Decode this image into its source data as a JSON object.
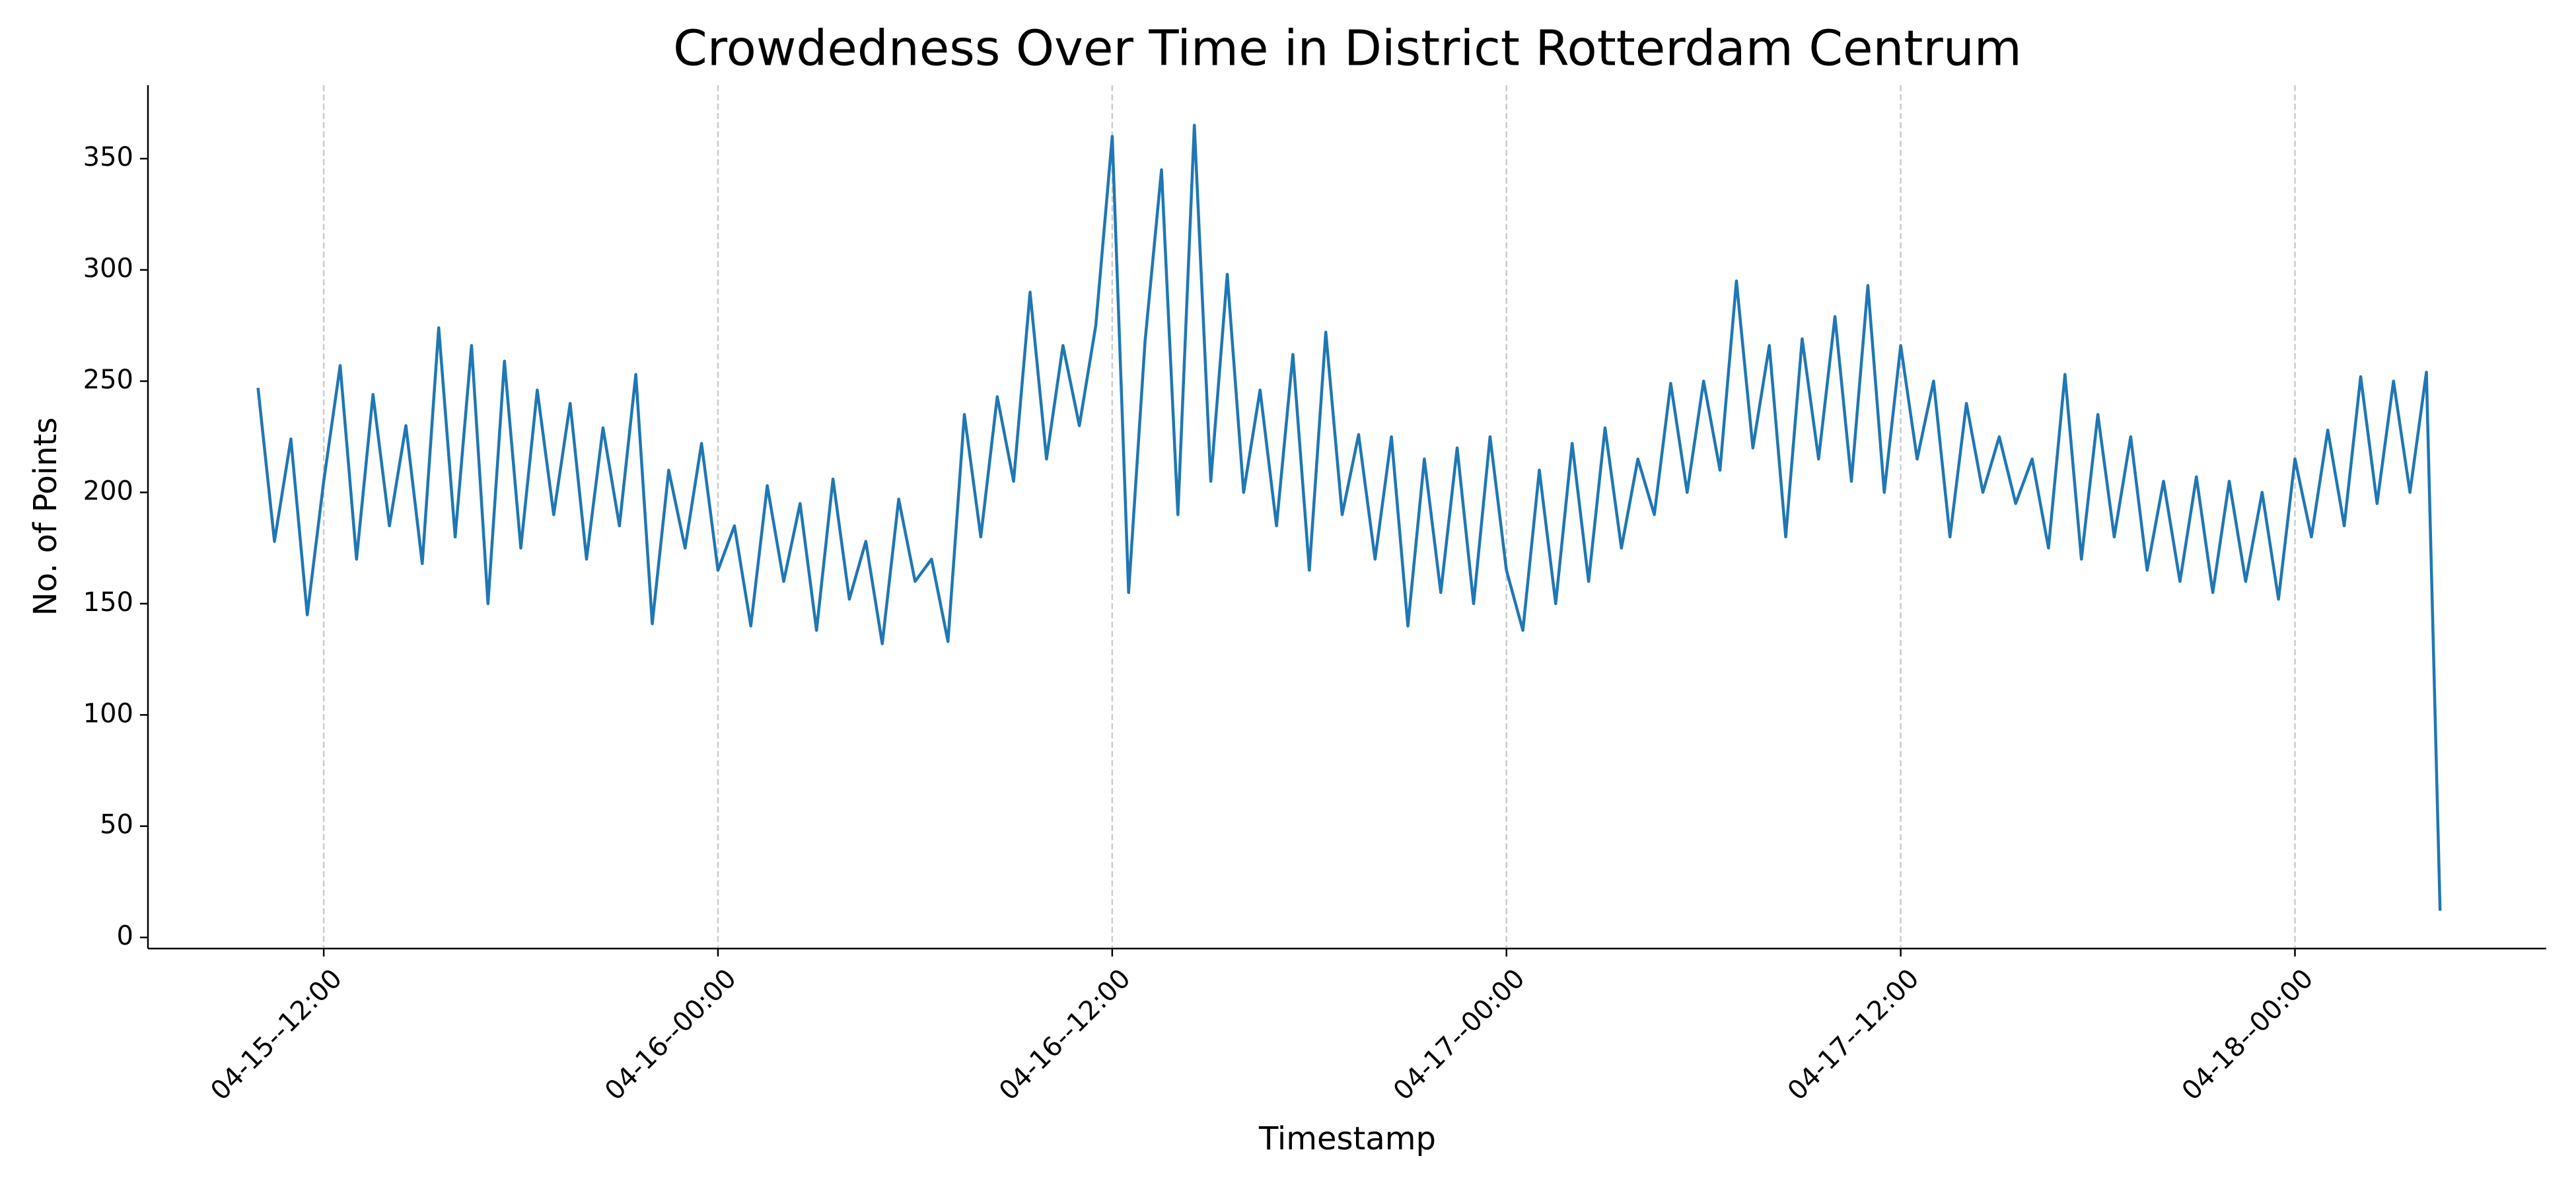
{
  "chart_data": {
    "type": "line",
    "title": "Crowdedness Over Time in District Rotterdam Centrum",
    "x_label": "Timestamp",
    "y_label": "No. of Points",
    "color": "#1f77b4",
    "grid": "x",
    "xlim": [
      "04-15--06:39",
      "04-18--07:39"
    ],
    "xticks": [
      "04-15--12:00",
      "04-16--00:00",
      "04-16--12:00",
      "04-17--00:00",
      "04-17--12:00",
      "04-18--00:00"
    ],
    "ylim": [
      -5,
      383
    ],
    "yticks": [
      0,
      50,
      100,
      150,
      200,
      250,
      300,
      350
    ],
    "x": [
      "04-15--10:00",
      "04-15--10:30",
      "04-15--11:00",
      "04-15--11:30",
      "04-15--12:00",
      "04-15--12:30",
      "04-15--13:00",
      "04-15--13:30",
      "04-15--14:00",
      "04-15--14:30",
      "04-15--15:00",
      "04-15--15:30",
      "04-15--16:00",
      "04-15--16:30",
      "04-15--17:00",
      "04-15--17:30",
      "04-15--18:00",
      "04-15--18:30",
      "04-15--19:00",
      "04-15--19:30",
      "04-15--20:00",
      "04-15--20:30",
      "04-15--21:00",
      "04-15--21:30",
      "04-15--22:00",
      "04-15--22:30",
      "04-15--23:00",
      "04-15--23:30",
      "04-16--00:00",
      "04-16--00:30",
      "04-16--01:00",
      "04-16--01:30",
      "04-16--02:00",
      "04-16--02:30",
      "04-16--03:00",
      "04-16--03:30",
      "04-16--04:00",
      "04-16--04:30",
      "04-16--05:00",
      "04-16--05:30",
      "04-16--06:00",
      "04-16--06:30",
      "04-16--07:00",
      "04-16--07:30",
      "04-16--08:00",
      "04-16--08:30",
      "04-16--09:00",
      "04-16--09:30",
      "04-16--10:00",
      "04-16--10:30",
      "04-16--11:00",
      "04-16--11:30",
      "04-16--12:00",
      "04-16--12:30",
      "04-16--13:00",
      "04-16--13:30",
      "04-16--14:00",
      "04-16--14:30",
      "04-16--15:00",
      "04-16--15:30",
      "04-16--16:00",
      "04-16--16:30",
      "04-16--17:00",
      "04-16--17:30",
      "04-16--18:00",
      "04-16--18:30",
      "04-16--19:00",
      "04-16--19:30",
      "04-16--20:00",
      "04-16--20:30",
      "04-16--21:00",
      "04-16--21:30",
      "04-16--22:00",
      "04-16--22:30",
      "04-16--23:00",
      "04-16--23:30",
      "04-17--00:00",
      "04-17--00:30",
      "04-17--01:00",
      "04-17--01:30",
      "04-17--02:00",
      "04-17--02:30",
      "04-17--03:00",
      "04-17--03:30",
      "04-17--04:00",
      "04-17--04:30",
      "04-17--05:00",
      "04-17--05:30",
      "04-17--06:00",
      "04-17--06:30",
      "04-17--07:00",
      "04-17--07:30",
      "04-17--08:00",
      "04-17--08:30",
      "04-17--09:00",
      "04-17--09:30",
      "04-17--10:00",
      "04-17--10:30",
      "04-17--11:00",
      "04-17--11:30",
      "04-17--12:00",
      "04-17--12:30",
      "04-17--13:00",
      "04-17--13:30",
      "04-17--14:00",
      "04-17--14:30",
      "04-17--15:00",
      "04-17--15:30",
      "04-17--16:00",
      "04-17--16:30",
      "04-17--17:00",
      "04-17--17:30",
      "04-17--18:00",
      "04-17--18:30",
      "04-17--19:00",
      "04-17--19:30",
      "04-17--20:00",
      "04-17--20:30",
      "04-17--21:00",
      "04-17--21:30",
      "04-17--22:00",
      "04-17--22:30",
      "04-17--23:00",
      "04-17--23:30",
      "04-18--00:00",
      "04-18--00:30",
      "04-18--01:00",
      "04-18--01:30",
      "04-18--02:00",
      "04-18--02:30",
      "04-18--03:00",
      "04-18--03:30",
      "04-18--04:00",
      "04-18--04:25"
    ],
    "values": [
      247,
      178,
      224,
      145,
      205,
      257,
      170,
      244,
      185,
      230,
      168,
      274,
      180,
      266,
      150,
      259,
      175,
      246,
      190,
      240,
      170,
      229,
      185,
      253,
      141,
      210,
      175,
      222,
      165,
      185,
      140,
      203,
      160,
      195,
      138,
      206,
      152,
      178,
      132,
      197,
      160,
      170,
      133,
      235,
      180,
      243,
      205,
      290,
      215,
      266,
      230,
      275,
      360,
      155,
      268,
      345,
      190,
      365,
      205,
      298,
      200,
      246,
      185,
      262,
      165,
      272,
      190,
      226,
      170,
      225,
      140,
      215,
      155,
      220,
      150,
      225,
      165,
      138,
      210,
      150,
      222,
      160,
      229,
      175,
      215,
      190,
      249,
      200,
      250,
      210,
      295,
      220,
      266,
      180,
      269,
      215,
      279,
      205,
      293,
      200,
      266,
      215,
      250,
      180,
      240,
      200,
      225,
      195,
      215,
      175,
      253,
      170,
      235,
      180,
      225,
      165,
      205,
      160,
      207,
      155,
      205,
      160,
      200,
      152,
      215,
      180,
      228,
      185,
      252,
      195,
      250,
      200,
      254,
      12
    ]
  }
}
